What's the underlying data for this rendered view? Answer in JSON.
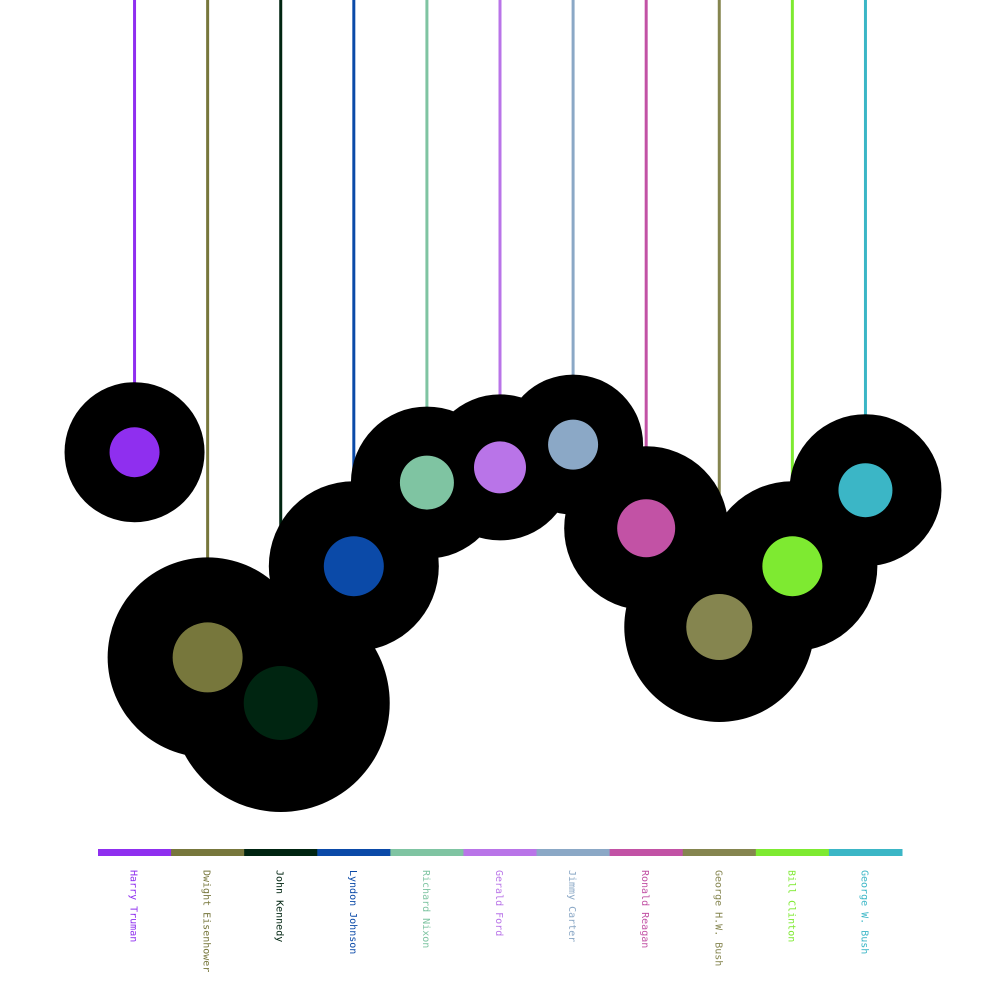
{
  "chart_data": {
    "type": "scatter",
    "title": "",
    "xlabel": "",
    "ylabel": "",
    "legend_position": "bottom",
    "grid": false,
    "categories": [
      "Harry Truman",
      "Dwight Eisenhower",
      "John Kennedy",
      "Lyndon Johnson",
      "Richard Nixon",
      "Gerald Ford",
      "Jimmy Carter",
      "Ronald Reagan",
      "George H.W. Bush",
      "Bill Clinton",
      "George W. Bush"
    ],
    "colors": [
      "#8f2fef",
      "#77773c",
      "#002511",
      "#0b4aa8",
      "#7fc4a2",
      "#b974e8",
      "#8ba8c6",
      "#c252a5",
      "#85854f",
      "#7eea31",
      "#3bb6c6"
    ],
    "series": [
      {
        "values": [
          {
            "label": "Harry Truman",
            "level": 0.53,
            "outer_size": 0.7,
            "inner_size": 0.25
          },
          {
            "label": "Dwight Eisenhower",
            "level": 0.26,
            "outer_size": 1.0,
            "inner_size": 0.35
          },
          {
            "label": "John Kennedy",
            "level": 0.2,
            "outer_size": 1.09,
            "inner_size": 0.37
          },
          {
            "label": "Lyndon Johnson",
            "level": 0.38,
            "outer_size": 0.85,
            "inner_size": 0.3
          },
          {
            "label": "Richard Nixon",
            "level": 0.49,
            "outer_size": 0.76,
            "inner_size": 0.27
          },
          {
            "label": "Gerald Ford",
            "level": 0.51,
            "outer_size": 0.73,
            "inner_size": 0.26
          },
          {
            "label": "Jimmy Carter",
            "level": 0.54,
            "outer_size": 0.7,
            "inner_size": 0.25
          },
          {
            "label": "Ronald Reagan",
            "level": 0.43,
            "outer_size": 0.82,
            "inner_size": 0.29
          },
          {
            "label": "George H.W. Bush",
            "level": 0.3,
            "outer_size": 0.95,
            "inner_size": 0.33
          },
          {
            "label": "Bill Clinton",
            "level": 0.38,
            "outer_size": 0.85,
            "inner_size": 0.3
          },
          {
            "label": "George W. Bush",
            "level": 0.48,
            "outer_size": 0.76,
            "inner_size": 0.27
          }
        ]
      }
    ]
  }
}
